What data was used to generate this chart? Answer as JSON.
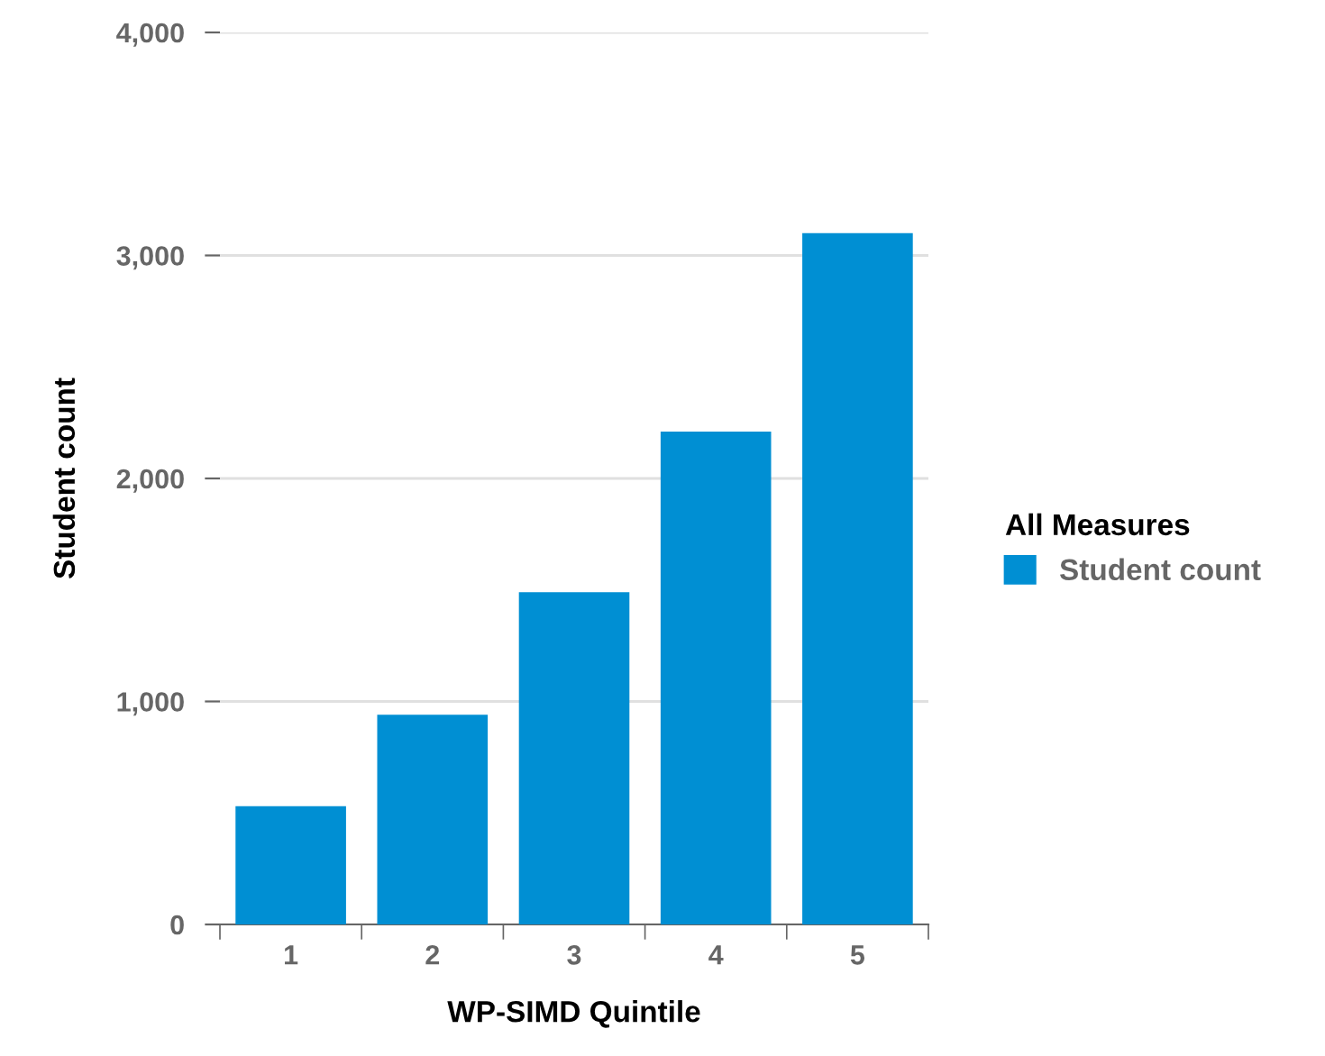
{
  "chart_data": {
    "type": "bar",
    "xlabel": "WP-SIMD Quintile",
    "ylabel": "Student count",
    "legend_title": "All Measures",
    "categories": [
      "1",
      "2",
      "3",
      "4",
      "5"
    ],
    "series": [
      {
        "name": "Student count",
        "color": "#008fd3",
        "values": [
          530,
          940,
          1490,
          2210,
          3100
        ]
      }
    ],
    "ylim": [
      0,
      4000
    ],
    "yticks": [
      {
        "value": 0,
        "label": "0"
      },
      {
        "value": 1000,
        "label": "1,000"
      },
      {
        "value": 2000,
        "label": "2,000"
      },
      {
        "value": 3000,
        "label": "3,000"
      },
      {
        "value": 4000,
        "label": "4,000"
      }
    ],
    "grid": "y",
    "legend": "right"
  }
}
